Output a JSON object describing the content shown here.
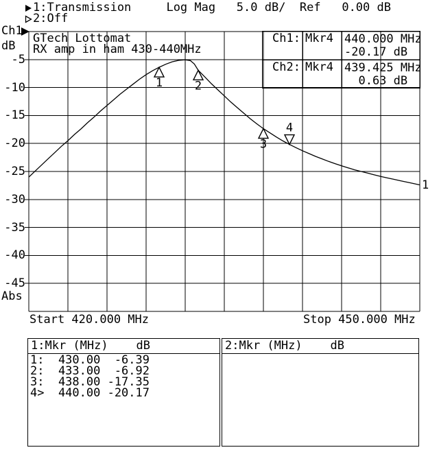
{
  "header": {
    "line1": "1:Transmission     Log Mag   5.0 dB/  Ref   0.00 dB",
    "line2": "2:Off"
  },
  "axis": {
    "channel": "Ch1",
    "unit": "dB",
    "bottom_label": "Abs",
    "ticks": [
      "-5",
      "-10",
      "-15",
      "-20",
      "-25",
      "-30",
      "-35",
      "-40",
      "-45"
    ]
  },
  "chart_data": {
    "type": "line",
    "title": "GTech Lottomat",
    "subtitle": "RX amp in ham 430-440MHz",
    "xlabel_start": "Start 420.000 MHz",
    "xlabel_stop": "Stop 450.000 MHz",
    "x_unit": "MHz",
    "y_unit": "dB",
    "x_range": [
      420,
      450
    ],
    "y_range": [
      -50,
      0
    ],
    "x_divisions": 10,
    "y_divisions": 10,
    "scale_per_div": "5.0 dB/",
    "reference_level": "0.00 dB",
    "grid": "on",
    "trace_end_label": "1",
    "series": [
      {
        "name": "1:Transmission",
        "points": [
          [
            420.0,
            -26.0
          ],
          [
            420.5,
            -24.9
          ],
          [
            421.0,
            -23.8
          ],
          [
            421.5,
            -22.7
          ],
          [
            422.0,
            -21.6
          ],
          [
            422.5,
            -20.5
          ],
          [
            423.0,
            -19.5
          ],
          [
            423.5,
            -18.4
          ],
          [
            424.0,
            -17.4
          ],
          [
            424.5,
            -16.3
          ],
          [
            425.0,
            -15.3
          ],
          [
            425.5,
            -14.2
          ],
          [
            426.0,
            -13.2
          ],
          [
            426.5,
            -12.2
          ],
          [
            427.0,
            -11.2
          ],
          [
            427.5,
            -10.3
          ],
          [
            428.0,
            -9.4
          ],
          [
            428.5,
            -8.5
          ],
          [
            429.0,
            -7.7
          ],
          [
            429.5,
            -7.0
          ],
          [
            430.0,
            -6.39
          ],
          [
            430.5,
            -5.85
          ],
          [
            431.0,
            -5.4
          ],
          [
            431.5,
            -5.15
          ],
          [
            432.0,
            -5.05
          ],
          [
            432.4,
            -5.2
          ],
          [
            432.7,
            -5.8
          ],
          [
            433.0,
            -6.92
          ],
          [
            433.5,
            -8.1
          ],
          [
            434.0,
            -9.3
          ],
          [
            434.5,
            -10.4
          ],
          [
            435.0,
            -11.5
          ],
          [
            435.5,
            -12.6
          ],
          [
            436.0,
            -13.6
          ],
          [
            436.5,
            -14.6
          ],
          [
            437.0,
            -15.6
          ],
          [
            437.5,
            -16.5
          ],
          [
            438.0,
            -17.35
          ],
          [
            438.5,
            -18.1
          ],
          [
            439.0,
            -18.85
          ],
          [
            439.5,
            -19.55
          ],
          [
            440.0,
            -20.17
          ],
          [
            440.5,
            -20.75
          ],
          [
            441.0,
            -21.3
          ],
          [
            441.5,
            -21.8
          ],
          [
            442.0,
            -22.3
          ],
          [
            442.5,
            -22.75
          ],
          [
            443.0,
            -23.2
          ],
          [
            443.5,
            -23.6
          ],
          [
            444.0,
            -24.0
          ],
          [
            444.5,
            -24.35
          ],
          [
            445.0,
            -24.7
          ],
          [
            445.5,
            -25.0
          ],
          [
            446.0,
            -25.3
          ],
          [
            446.5,
            -25.6
          ],
          [
            447.0,
            -25.9
          ],
          [
            447.5,
            -26.15
          ],
          [
            448.0,
            -26.4
          ],
          [
            448.5,
            -26.65
          ],
          [
            449.0,
            -26.9
          ],
          [
            449.5,
            -27.15
          ],
          [
            450.0,
            -27.4
          ]
        ]
      }
    ],
    "markers": [
      {
        "label": "1",
        "freq_mhz": 430.0,
        "db": -6.39,
        "direction": "up"
      },
      {
        "label": "2",
        "freq_mhz": 433.0,
        "db": -6.92,
        "direction": "up"
      },
      {
        "label": "3",
        "freq_mhz": 438.0,
        "db": -17.35,
        "direction": "up"
      },
      {
        "label": "4",
        "freq_mhz": 440.0,
        "db": -20.17,
        "direction": "down"
      }
    ]
  },
  "info_box": {
    "rows": [
      {
        "channel": "Ch1:",
        "marker": "Mkr4",
        "line1": "440.000 MHz",
        "line2": "-20.17 dB"
      },
      {
        "channel": "Ch2:",
        "marker": "Mkr4",
        "line1": "439.425 MHz",
        "line2": "  0.63 dB"
      }
    ]
  },
  "marker_tables": {
    "left": {
      "header": "1:Mkr (MHz)    dB",
      "rows": [
        "1:  430.00  -6.39",
        "2:  433.00  -6.92",
        "3:  438.00 -17.35",
        "4>  440.00 -20.17"
      ]
    },
    "right": {
      "header": "2:Mkr (MHz)    dB",
      "rows": []
    }
  },
  "colors": {
    "foreground": "#000000",
    "background": "#ffffff"
  }
}
